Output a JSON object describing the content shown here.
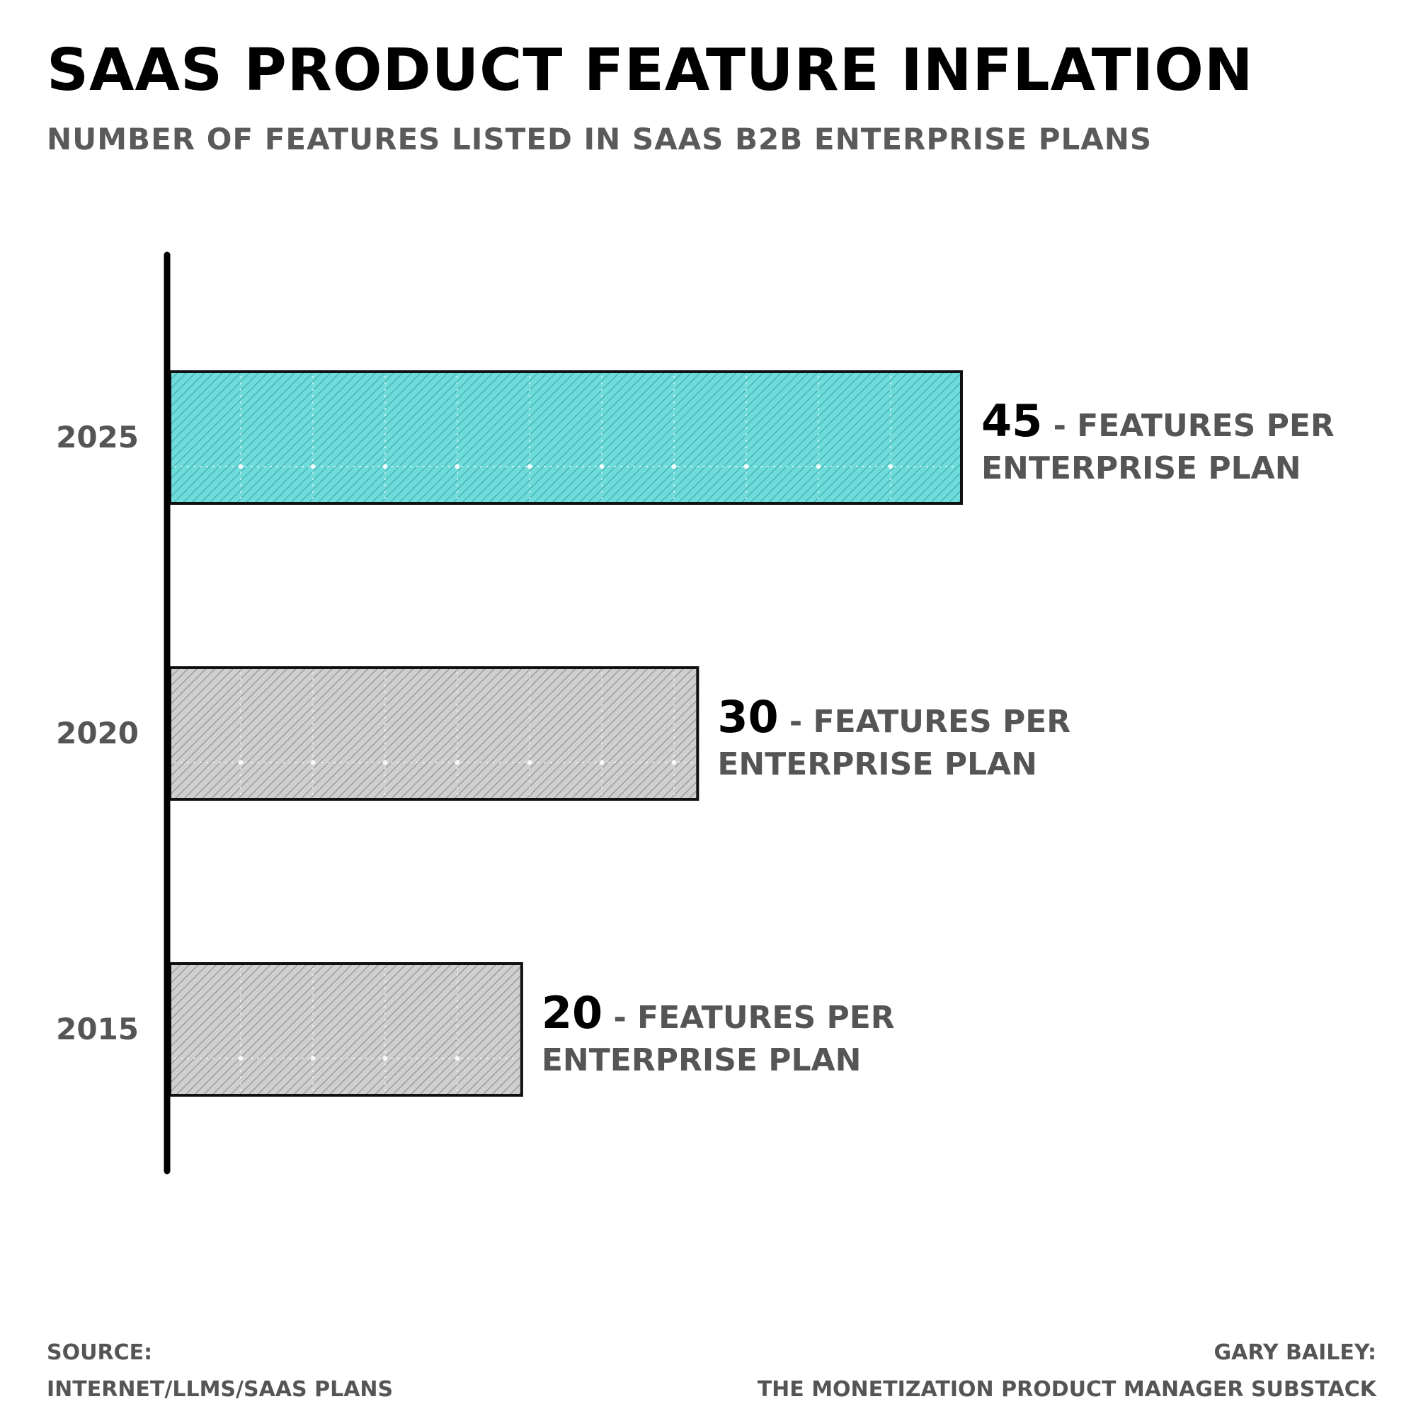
{
  "chart_data": {
    "type": "bar",
    "orientation": "horizontal",
    "title": "SAAS PRODUCT FEATURE INFLATION",
    "subtitle": "NUMBER OF FEATURES LISTED IN SAAS B2B ENTERPRISE PLANS",
    "categories": [
      "2025",
      "2020",
      "2015"
    ],
    "values": [
      45,
      30,
      20
    ],
    "data_labels": [
      {
        "value": "45",
        "line1": " - FEATURES PER",
        "line2": "ENTERPRISE PLAN"
      },
      {
        "value": "30",
        "line1": " - FEATURES PER",
        "line2": "ENTERPRISE PLAN"
      },
      {
        "value": "20",
        "line1": " - FEATURES PER",
        "line2": "ENTERPRISE PLAN"
      }
    ],
    "colors": [
      "#5fd3d3",
      "#b0b0b0",
      "#b0b0b0"
    ],
    "xlim": [
      0,
      45
    ],
    "grid": false,
    "legend": "none"
  },
  "footer": {
    "source_line1": "SOURCE:",
    "source_line2": "INTERNET/LLMS/SAAS PLANS",
    "credit_line1": "GARY BAILEY:",
    "credit_line2": "THE MONETIZATION PRODUCT MANAGER SUBSTACK"
  }
}
